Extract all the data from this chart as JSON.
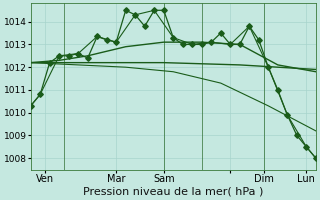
{
  "background_color": "#c5e8e0",
  "grid_color": "#a8d4cc",
  "line_color": "#1a5c1a",
  "series1_x": [
    0,
    1,
    2,
    3,
    4,
    5,
    6,
    7,
    8,
    9,
    10,
    11,
    12,
    13,
    14,
    15,
    16,
    17,
    18,
    19,
    20,
    21,
    22,
    23,
    24,
    25,
    26,
    27,
    28,
    29,
    30
  ],
  "series1_y": [
    1010.3,
    1010.8,
    1012.2,
    1012.5,
    1012.5,
    1012.6,
    1012.4,
    1013.35,
    1013.2,
    1013.1,
    1014.5,
    1014.3,
    1013.8,
    1014.5,
    1014.5,
    1013.3,
    1013.0,
    1013.0,
    1013.0,
    1013.1,
    1013.5,
    1013.0,
    1013.0,
    1013.8,
    1013.2,
    1012.0,
    1011.0,
    1009.9,
    1009.0,
    1008.5,
    1008.0
  ],
  "series2_x": [
    0,
    1,
    3,
    5,
    7,
    9,
    11,
    13,
    15,
    17,
    19,
    21,
    23,
    25,
    27,
    29,
    30
  ],
  "series2_y": [
    1010.3,
    1010.8,
    1012.5,
    1012.6,
    1013.35,
    1013.1,
    1014.3,
    1014.5,
    1013.3,
    1013.0,
    1013.1,
    1013.0,
    1013.8,
    1012.0,
    1009.9,
    1008.5,
    1008.0
  ],
  "smooth1_x": [
    0,
    3,
    6,
    10,
    14,
    18,
    22,
    26,
    30
  ],
  "smooth1_y": [
    1012.2,
    1012.3,
    1012.5,
    1012.9,
    1013.1,
    1013.1,
    1013.0,
    1012.1,
    1011.8
  ],
  "smooth2_x": [
    0,
    3,
    6,
    10,
    14,
    18,
    22,
    26,
    30
  ],
  "smooth2_y": [
    1012.2,
    1012.2,
    1012.2,
    1012.2,
    1012.2,
    1012.15,
    1012.1,
    1012.0,
    1011.9
  ],
  "smooth3_x": [
    0,
    5,
    10,
    15,
    20,
    25,
    30
  ],
  "smooth3_y": [
    1012.2,
    1012.1,
    1012.0,
    1011.8,
    1011.3,
    1010.3,
    1009.2
  ],
  "ylim": [
    1007.5,
    1014.8
  ],
  "yticks": [
    1008,
    1009,
    1010,
    1011,
    1012,
    1013,
    1014
  ],
  "xlim": [
    0,
    30
  ],
  "vline_positions": [
    3.5,
    14,
    18,
    24.5
  ],
  "xtick_positions": [
    1.5,
    9,
    14,
    21,
    24.5,
    29
  ],
  "xtick_labels": [
    "Ven",
    "Mar",
    "Sam",
    "",
    "Dim",
    "Lun"
  ],
  "xlabel": "Pression niveau de la mer( hPa )",
  "xlabel_fontsize": 8,
  "tick_fontsize": 7,
  "ytick_fontsize": 6.5
}
